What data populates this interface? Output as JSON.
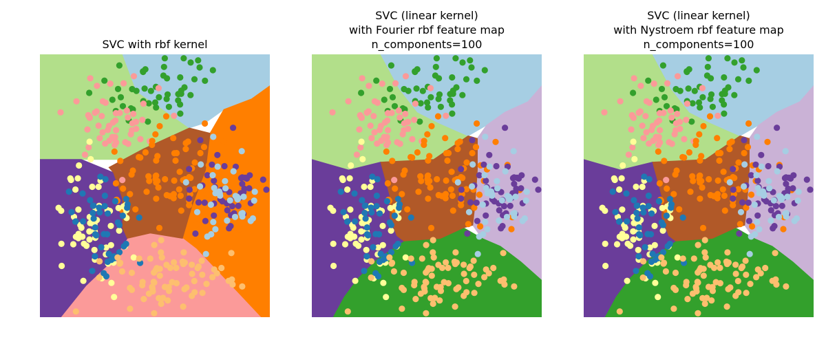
{
  "chart_data": [
    {
      "type": "scatter",
      "title_lines": [
        "SVC with rbf kernel"
      ],
      "boundary_style": "rbf",
      "region_colors": {
        "NW": "#b2df8a",
        "N": "#a6cee3",
        "E": "#ff7f00",
        "S": "#fb9a99",
        "W": "#6a3d9a",
        "C": "#b15928"
      },
      "axis": "off",
      "grid": false
    },
    {
      "type": "scatter",
      "title_lines": [
        "SVC (linear kernel)",
        "with Fourier rbf feature map",
        "n_components=100"
      ],
      "boundary_style": "approx",
      "region_colors": {
        "NW": "#b2df8a",
        "N": "#a6cee3",
        "E": "#cab2d6",
        "S": "#33a02c",
        "W": "#6a3d9a",
        "C": "#b15928"
      },
      "axis": "off",
      "grid": false
    },
    {
      "type": "scatter",
      "title_lines": [
        "SVC (linear kernel)",
        "with Nystroem rbf feature map",
        "n_components=100"
      ],
      "boundary_style": "approx",
      "region_colors": {
        "NW": "#b2df8a",
        "N": "#a6cee3",
        "E": "#cab2d6",
        "S": "#33a02c",
        "W": "#6a3d9a",
        "C": "#b15928"
      },
      "axis": "off",
      "grid": false
    }
  ],
  "point_classes": [
    {
      "cluster": "top",
      "color": "#33a02c",
      "center": [
        0.5,
        0.12
      ],
      "spread": [
        0.11,
        0.07
      ],
      "count": 48
    },
    {
      "cluster": "upper-left",
      "color": "#fb9a99",
      "center": [
        0.32,
        0.27
      ],
      "spread": [
        0.09,
        0.07
      ],
      "count": 52
    },
    {
      "cluster": "center",
      "color": "#ff7f00",
      "center": [
        0.58,
        0.46
      ],
      "spread": [
        0.13,
        0.1
      ],
      "count": 75
    },
    {
      "cluster": "lower-left",
      "color": "#ffff99",
      "center": [
        0.22,
        0.62
      ],
      "spread": [
        0.08,
        0.1
      ],
      "count": 60
    },
    {
      "cluster": "left",
      "color": "#1f78b4",
      "center": [
        0.28,
        0.67
      ],
      "spread": [
        0.07,
        0.09
      ],
      "count": 45
    },
    {
      "cluster": "right",
      "color": "#6a3d9a",
      "center": [
        0.8,
        0.52
      ],
      "spread": [
        0.08,
        0.09
      ],
      "count": 48
    },
    {
      "cluster": "right-light",
      "color": "#a6cee3",
      "center": [
        0.8,
        0.55
      ],
      "spread": [
        0.07,
        0.1
      ],
      "count": 38
    },
    {
      "cluster": "bottom",
      "color": "#fdbf6f",
      "center": [
        0.55,
        0.84
      ],
      "spread": [
        0.16,
        0.07
      ],
      "count": 72
    }
  ]
}
